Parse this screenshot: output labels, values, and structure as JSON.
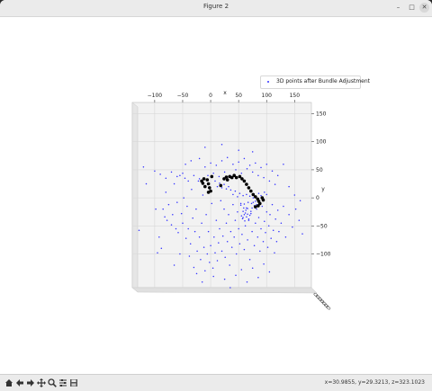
{
  "window": {
    "title": "Figure 2",
    "minimize": "–",
    "maximize": "□",
    "close": "✕"
  },
  "legend": {
    "label": "3D points after Bundle Adjustment"
  },
  "axes": {
    "x_label": "x",
    "y_label": "y",
    "x_ticks": [
      "−100",
      "−50",
      "0",
      "50",
      "100",
      "150"
    ],
    "y_ticks": [
      "150",
      "100",
      "50",
      "0",
      "−50",
      "−100"
    ]
  },
  "status": {
    "coords": "x=30.9855, y=29.3213, z=323.1023"
  },
  "toolbar": [
    "home-icon",
    "back-icon",
    "forward-icon",
    "pan-icon",
    "zoom-icon",
    "configure-icon",
    "save-icon"
  ],
  "colors": {
    "points": "#3333ff",
    "cameras": "#000000",
    "pane": "#f2f2f2",
    "grid": "#d8d8d8"
  },
  "chart_data": {
    "type": "scatter",
    "title": "",
    "xlabel": "x",
    "ylabel": "y",
    "xlim": [
      -140,
      180
    ],
    "ylim": [
      170,
      -160
    ],
    "series": [
      {
        "name": "3D points after Bundle Adjustment",
        "points": [
          [
            -98,
            -20
          ],
          [
            -95,
            -98
          ],
          [
            -92,
            -70
          ],
          [
            -88,
            -90
          ],
          [
            -85,
            -20
          ],
          [
            -82,
            -34
          ],
          [
            -80,
            10
          ],
          [
            -78,
            -40
          ],
          [
            -75,
            -12
          ],
          [
            -70,
            -48
          ],
          [
            -68,
            -30
          ],
          [
            -65,
            25
          ],
          [
            -62,
            -55
          ],
          [
            -60,
            -8
          ],
          [
            -58,
            -62
          ],
          [
            -55,
            40
          ],
          [
            -52,
            -28
          ],
          [
            -50,
            -45
          ],
          [
            -48,
            0
          ],
          [
            -46,
            35
          ],
          [
            -44,
            -72
          ],
          [
            -42,
            -15
          ],
          [
            -40,
            -55
          ],
          [
            -38,
            -104
          ],
          [
            -36,
            -82
          ],
          [
            -34,
            15
          ],
          [
            -32,
            -36
          ],
          [
            -30,
            -124
          ],
          [
            -28,
            -60
          ],
          [
            -26,
            -20
          ],
          [
            -24,
            -95
          ],
          [
            -22,
            30
          ],
          [
            -20,
            -70
          ],
          [
            -18,
            -110
          ],
          [
            -16,
            -45
          ],
          [
            -14,
            5
          ],
          [
            -12,
            -88
          ],
          [
            -10,
            -130
          ],
          [
            -8,
            -30
          ],
          [
            -6,
            -100
          ],
          [
            -4,
            -60
          ],
          [
            -2,
            -115
          ],
          [
            0,
            -85
          ],
          [
            2,
            -10
          ],
          [
            4,
            -125
          ],
          [
            6,
            -70
          ],
          [
            8,
            -98
          ],
          [
            10,
            -40
          ],
          [
            12,
            -112
          ],
          [
            14,
            -80
          ],
          [
            16,
            -55
          ],
          [
            18,
            -5
          ],
          [
            20,
            -95
          ],
          [
            22,
            -68
          ],
          [
            24,
            -20
          ],
          [
            26,
            -106
          ],
          [
            28,
            -45
          ],
          [
            30,
            -78
          ],
          [
            32,
            -30
          ],
          [
            34,
            -120
          ],
          [
            36,
            -60
          ],
          [
            38,
            -88
          ],
          [
            40,
            -12
          ],
          [
            42,
            -70
          ],
          [
            44,
            -40
          ],
          [
            46,
            -100
          ],
          [
            48,
            -25
          ],
          [
            50,
            -55
          ],
          [
            52,
            -82
          ],
          [
            54,
            -10
          ],
          [
            56,
            -65
          ],
          [
            58,
            -35
          ],
          [
            60,
            -92
          ],
          [
            62,
            -50
          ],
          [
            64,
            -18
          ],
          [
            66,
            -75
          ],
          [
            68,
            -40
          ],
          [
            70,
            -110
          ],
          [
            72,
            -28
          ],
          [
            74,
            -60
          ],
          [
            76,
            -8
          ],
          [
            78,
            -85
          ],
          [
            80,
            -45
          ],
          [
            82,
            -20
          ],
          [
            84,
            -70
          ],
          [
            86,
            -35
          ],
          [
            88,
            -95
          ],
          [
            90,
            -55
          ],
          [
            92,
            -15
          ],
          [
            94,
            -78
          ],
          [
            96,
            -42
          ],
          [
            98,
            -62
          ],
          [
            100,
            -25
          ],
          [
            102,
            -88
          ],
          [
            104,
            -50
          ],
          [
            106,
            -30
          ],
          [
            108,
            -72
          ],
          [
            110,
            -12
          ],
          [
            112,
            -58
          ],
          [
            114,
            -98
          ],
          [
            116,
            -38
          ],
          [
            118,
            -78
          ],
          [
            120,
            -22
          ],
          [
            122,
            -60
          ],
          [
            126,
            -45
          ],
          [
            130,
            -15
          ],
          [
            134,
            -70
          ],
          [
            140,
            -30
          ],
          [
            146,
            -52
          ],
          [
            152,
            -20
          ],
          [
            158,
            -40
          ],
          [
            164,
            -64
          ],
          [
            60,
            -30
          ],
          [
            62,
            -27
          ],
          [
            58,
            -24
          ],
          [
            64,
            -34
          ],
          [
            66,
            -29
          ],
          [
            55,
            -32
          ],
          [
            68,
            -38
          ],
          [
            61,
            -41
          ],
          [
            57,
            -37
          ],
          [
            70,
            -31
          ],
          [
            63,
            -22
          ],
          [
            59,
            -18
          ],
          [
            66,
            -19
          ],
          [
            72,
            -24
          ],
          [
            74,
            -18
          ],
          [
            54,
            -13
          ],
          [
            60,
            -11
          ],
          [
            67,
            -8
          ],
          [
            73,
            -10
          ],
          [
            78,
            -14
          ],
          [
            80,
            -6
          ],
          [
            84,
            -2
          ],
          [
            76,
            0
          ],
          [
            70,
            3
          ],
          [
            64,
            6
          ],
          [
            58,
            4
          ],
          [
            52,
            8
          ],
          [
            48,
            2
          ],
          [
            86,
            8
          ],
          [
            90,
            4
          ],
          [
            94,
            -1
          ],
          [
            88,
            -8
          ],
          [
            82,
            -12
          ],
          [
            96,
            10
          ],
          [
            100,
            6
          ],
          [
            44,
            12
          ],
          [
            40,
            6
          ],
          [
            36,
            14
          ],
          [
            32,
            20
          ],
          [
            28,
            16
          ],
          [
            24,
            24
          ],
          [
            20,
            18
          ],
          [
            16,
            26
          ],
          [
            12,
            20
          ],
          [
            8,
            30
          ],
          [
            -20,
            34
          ],
          [
            -30,
            40
          ],
          [
            -40,
            30
          ],
          [
            -50,
            44
          ],
          [
            -60,
            38
          ],
          [
            -70,
            46
          ],
          [
            -80,
            35
          ],
          [
            -90,
            42
          ],
          [
            -100,
            48
          ],
          [
            -45,
            60
          ],
          [
            -35,
            66
          ],
          [
            -20,
            70
          ],
          [
            -10,
            55
          ],
          [
            0,
            62
          ],
          [
            10,
            58
          ],
          [
            20,
            66
          ],
          [
            30,
            72
          ],
          [
            40,
            60
          ],
          [
            50,
            64
          ],
          [
            60,
            70
          ],
          [
            70,
            58
          ],
          [
            80,
            62
          ],
          [
            90,
            54
          ],
          [
            100,
            60
          ],
          [
            110,
            48
          ],
          [
            -5,
            40
          ],
          [
            5,
            44
          ],
          [
            15,
            38
          ],
          [
            25,
            46
          ],
          [
            35,
            40
          ],
          [
            45,
            50
          ],
          [
            55,
            44
          ],
          [
            65,
            52
          ],
          [
            75,
            46
          ],
          [
            85,
            40
          ],
          [
            95,
            36
          ],
          [
            105,
            30
          ],
          [
            115,
            24
          ],
          [
            120,
            40
          ],
          [
            -15,
            -150
          ],
          [
            5,
            -140
          ],
          [
            25,
            -145
          ],
          [
            45,
            -138
          ],
          [
            65,
            -150
          ],
          [
            85,
            -142
          ],
          [
            105,
            -132
          ],
          [
            -25,
            -135
          ],
          [
            35,
            -160
          ],
          [
            55,
            -128
          ],
          [
            75,
            -125
          ],
          [
            95,
            -118
          ],
          [
            -55,
            -100
          ],
          [
            -65,
            -120
          ],
          [
            -115,
            25
          ],
          [
            -120,
            55
          ],
          [
            140,
            20
          ],
          [
            150,
            5
          ],
          [
            160,
            -5
          ],
          [
            -128,
            -58
          ],
          [
            130,
            60
          ],
          [
            20,
            95
          ],
          [
            -10,
            90
          ],
          [
            50,
            85
          ],
          [
            75,
            82
          ]
        ]
      },
      {
        "name": "",
        "points": [
          [
            -6,
            32
          ],
          [
            -4,
            25
          ],
          [
            -2,
            18
          ],
          [
            0,
            12
          ],
          [
            -4,
            10
          ],
          [
            -10,
            20
          ],
          [
            -14,
            26
          ],
          [
            -16,
            30
          ],
          [
            -12,
            34
          ],
          [
            2,
            38
          ],
          [
            24,
            34
          ],
          [
            28,
            37
          ],
          [
            30,
            32
          ],
          [
            34,
            38
          ],
          [
            38,
            36
          ],
          [
            42,
            40
          ],
          [
            46,
            36
          ],
          [
            52,
            38
          ],
          [
            56,
            34
          ],
          [
            60,
            30
          ],
          [
            64,
            24
          ],
          [
            68,
            18
          ],
          [
            72,
            12
          ],
          [
            76,
            6
          ],
          [
            80,
            2
          ],
          [
            84,
            -2
          ],
          [
            86,
            -6
          ],
          [
            88,
            -10
          ],
          [
            85,
            -14
          ],
          [
            80,
            -16
          ],
          [
            92,
            0
          ],
          [
            94,
            -4
          ],
          [
            18,
            22
          ]
        ]
      }
    ]
  }
}
